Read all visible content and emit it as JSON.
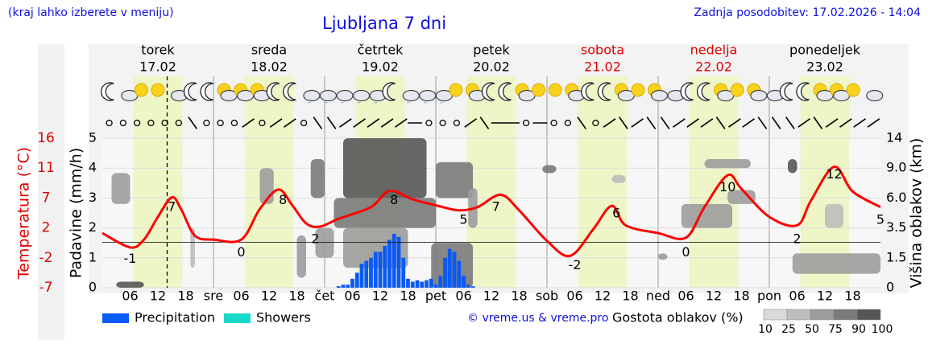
{
  "header": {
    "note": "(kraj lahko izberete v meniju)",
    "title": "Ljubljana 7 dni",
    "updated": "Zadnja posodobitev: 17.02.2026 - 14:04"
  },
  "chart_data": {
    "type": "meteogram",
    "days": [
      {
        "name": "torek",
        "date": "17.02",
        "color": "#000000"
      },
      {
        "name": "sreda",
        "date": "18.02",
        "color": "#000000"
      },
      {
        "name": "četrtek",
        "date": "19.02",
        "color": "#000000"
      },
      {
        "name": "petek",
        "date": "20.02",
        "color": "#000000"
      },
      {
        "name": "sobota",
        "date": "21.02",
        "color": "#e00000"
      },
      {
        "name": "nedelja",
        "date": "22.02",
        "color": "#e00000"
      },
      {
        "name": "ponedeljek",
        "date": "23.02",
        "color": "#000000"
      }
    ],
    "ylabel": "Padavine (mm/h)",
    "ylim": [
      0,
      5
    ],
    "yticks": [
      0,
      1,
      2,
      3,
      4,
      5
    ],
    "temperature_label": "Temperatura (°C)",
    "temperature_color": "#ff0000",
    "temperature_lim": [
      -7,
      16
    ],
    "temperature_ticks": [
      -7,
      {
        "value": -2.4,
        "label": "-2"
      },
      {
        "value": 2.2,
        "label": "2"
      },
      {
        "value": 6.8,
        "label": "7"
      },
      {
        "value": 11.4,
        "label": "11"
      },
      16
    ],
    "y2label": "Višina oblakov (km)",
    "y2ticks": [
      0,
      1.5,
      3.5,
      {
        "value": 6,
        "label": "6.0"
      },
      {
        "value": 9,
        "label": "9.0"
      },
      14
    ],
    "xlim": [
      0,
      168
    ],
    "xticks": [
      {
        "value": 6,
        "label": "06"
      },
      {
        "value": 12,
        "label": "12"
      },
      {
        "value": 18,
        "label": "18"
      },
      {
        "value": 24,
        "label": "sre"
      },
      {
        "value": 30,
        "label": "06"
      },
      {
        "value": 36,
        "label": "12"
      },
      {
        "value": 42,
        "label": "18"
      },
      {
        "value": 48,
        "label": "čet"
      },
      {
        "value": 54,
        "label": "06"
      },
      {
        "value": 60,
        "label": "12"
      },
      {
        "value": 66,
        "label": "18"
      },
      {
        "value": 72,
        "label": "pet"
      },
      {
        "value": 78,
        "label": "06"
      },
      {
        "value": 84,
        "label": "12"
      },
      {
        "value": 90,
        "label": "18"
      },
      {
        "value": 96,
        "label": "sob"
      },
      {
        "value": 102,
        "label": "06"
      },
      {
        "value": 108,
        "label": "12"
      },
      {
        "value": 114,
        "label": "18"
      },
      {
        "value": 120,
        "label": "ned"
      },
      {
        "value": 126,
        "label": "06"
      },
      {
        "value": 132,
        "label": "12"
      },
      {
        "value": 138,
        "label": "18"
      },
      {
        "value": 144,
        "label": "pon"
      },
      {
        "value": 150,
        "label": "06"
      },
      {
        "value": 156,
        "label": "12"
      },
      {
        "value": 162,
        "label": "18"
      }
    ],
    "now": 14,
    "freezing_line": 0,
    "temperature": {
      "x": [
        0,
        6,
        9,
        12,
        15,
        17,
        20,
        24,
        30,
        34,
        38,
        41,
        44,
        47,
        51,
        58,
        62,
        67,
        73,
        77,
        81,
        86,
        90,
        96,
        101,
        106,
        110,
        113,
        120,
        126,
        130,
        135,
        138,
        144,
        150,
        153,
        158,
        162,
        168
      ],
      "values": [
        1.4,
        -0.8,
        0.4,
        3.9,
        6.9,
        5.1,
        1.0,
        0.4,
        0.4,
        5.1,
        8.1,
        5.7,
        2.9,
        2.4,
        3.6,
        5.4,
        7.9,
        6.6,
        5.5,
        4.9,
        5.4,
        7.3,
        4.9,
        0.2,
        -2.1,
        2.0,
        5.6,
        2.6,
        1.4,
        0.7,
        5.4,
        10.3,
        8.2,
        3.9,
        2.6,
        6.4,
        11.6,
        7.8,
        5.4
      ]
    },
    "temperature_labels": {
      "x": [
        6,
        15,
        30,
        39,
        46,
        63,
        78,
        85,
        102,
        111,
        126,
        135,
        150,
        158,
        168
      ],
      "values": [
        -1,
        7,
        0,
        8,
        2,
        8,
        5,
        7,
        -2,
        6,
        0,
        10,
        2,
        12,
        5
      ]
    },
    "series": [
      {
        "name": "Precipitation",
        "color": "#0a5af5",
        "x": [
          51,
          52,
          53,
          54,
          55,
          56,
          57,
          58,
          59,
          60,
          61,
          62,
          63,
          64,
          65,
          66,
          67,
          68,
          69,
          70,
          71,
          72,
          73,
          74,
          75,
          76,
          77,
          78,
          79,
          80
        ],
        "values": [
          0.05,
          0.1,
          0.1,
          0.3,
          0.5,
          0.8,
          0.9,
          1.0,
          1.2,
          1.2,
          1.4,
          1.6,
          1.8,
          1.7,
          1.0,
          0.3,
          0.2,
          0.25,
          0.2,
          0.25,
          0.3,
          0.1,
          0.4,
          1.0,
          1.3,
          1.2,
          0.9,
          0.4,
          0.1,
          0.05
        ]
      },
      {
        "name": "Showers",
        "color": "#19d9c9",
        "x": [],
        "values": []
      }
    ],
    "clouds": {
      "label": "Gostota oblakov (%)",
      "levels": [
        10,
        25,
        50,
        75,
        90,
        100
      ],
      "colors": [
        "#d9d9d9",
        "#bdbdbd",
        "#9c9c9c",
        "#7a7a7a",
        "#565656"
      ],
      "areas": [
        {
          "x": [
            2,
            6
          ],
          "km": [
            5.5,
            8.5
          ],
          "density": 50
        },
        {
          "x": [
            3,
            9
          ],
          "km": [
            0,
            0.3
          ],
          "density": 90
        },
        {
          "x": [
            19,
            20
          ],
          "km": [
            1.0,
            3.5
          ],
          "density": 25
        },
        {
          "x": [
            34,
            37
          ],
          "km": [
            5.5,
            9
          ],
          "density": 50
        },
        {
          "x": [
            42,
            44
          ],
          "km": [
            0.5,
            3
          ],
          "density": 50
        },
        {
          "x": [
            45,
            48
          ],
          "km": [
            6,
            10.5
          ],
          "density": 75
        },
        {
          "x": [
            46,
            50
          ],
          "km": [
            1.5,
            3.5
          ],
          "density": 50
        },
        {
          "x": [
            50,
            72
          ],
          "km": [
            3.5,
            6
          ],
          "density": 75
        },
        {
          "x": [
            52,
            66
          ],
          "km": [
            1,
            3.5
          ],
          "density": 50
        },
        {
          "x": [
            52,
            70
          ],
          "km": [
            6,
            14
          ],
          "density": 90
        },
        {
          "x": [
            72,
            80
          ],
          "km": [
            6,
            10
          ],
          "density": 75
        },
        {
          "x": [
            71,
            80
          ],
          "km": [
            0,
            2.5
          ],
          "density": 75
        },
        {
          "x": [
            79,
            81
          ],
          "km": [
            3.5,
            7
          ],
          "density": 50
        },
        {
          "x": [
            95,
            98
          ],
          "km": [
            8.5,
            9.5
          ],
          "density": 75
        },
        {
          "x": [
            110,
            113
          ],
          "km": [
            7.5,
            8.3
          ],
          "density": 25
        },
        {
          "x": [
            120,
            122
          ],
          "km": [
            1.4,
            1.8
          ],
          "density": 50
        },
        {
          "x": [
            125,
            136
          ],
          "km": [
            3.5,
            5.5
          ],
          "density": 50
        },
        {
          "x": [
            130,
            140
          ],
          "km": [
            9,
            10.5
          ],
          "density": 50
        },
        {
          "x": [
            135,
            141
          ],
          "km": [
            5.5,
            6.8
          ],
          "density": 50
        },
        {
          "x": [
            148,
            150
          ],
          "km": [
            8.5,
            10.5
          ],
          "density": 90
        },
        {
          "x": [
            149,
            168
          ],
          "km": [
            0.7,
            1.8
          ],
          "density": 50
        },
        {
          "x": [
            156,
            160
          ],
          "km": [
            3.5,
            5.5
          ],
          "density": 25
        }
      ]
    },
    "credit": "© vreme.us & vreme.pro"
  }
}
